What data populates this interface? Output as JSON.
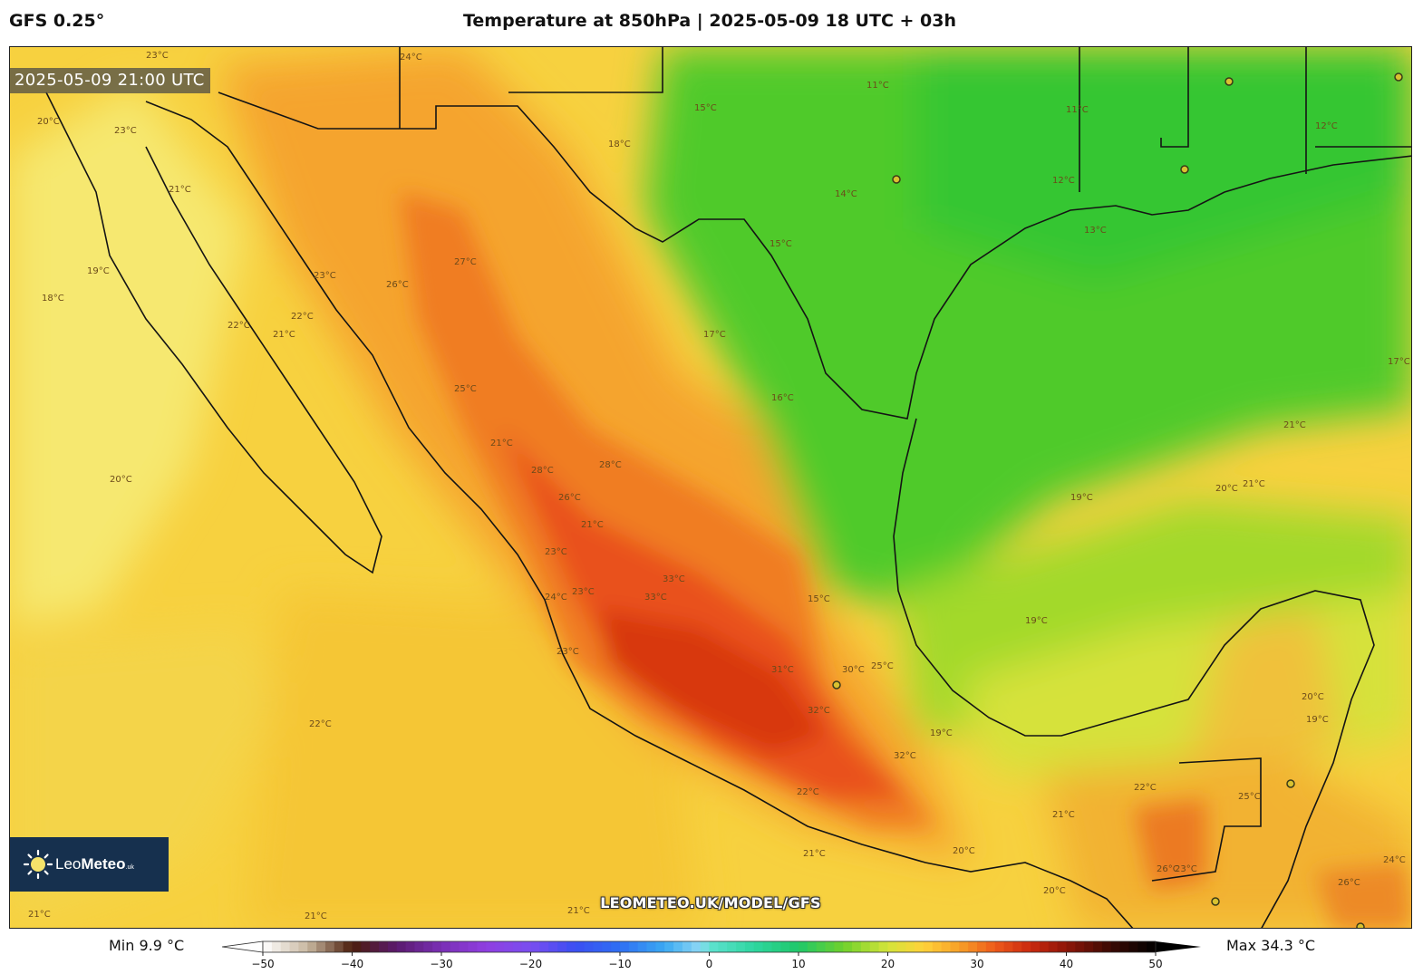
{
  "header": {
    "model": "GFS 0.25°",
    "title": "Temperature at 850hPa | 2025-05-09 18 UTC + 03h"
  },
  "map": {
    "valid_time": "2025-05-09 21:00 UTC",
    "watermark_url": "LEOMETEO.UK/MODEL/GFS",
    "contour_labels": [
      "23°C",
      "24°C",
      "20°C",
      "23°C",
      "21°C",
      "19°C",
      "18°C",
      "23°C",
      "22°C",
      "21°C",
      "22°C",
      "20°C",
      "26°C",
      "27°C",
      "25°C",
      "21°C",
      "28°C",
      "28°C",
      "26°C",
      "21°C",
      "23°C",
      "24°C",
      "23°C",
      "23°C",
      "33°C",
      "33°C",
      "31°C",
      "32°C",
      "30°C",
      "32°C",
      "25°C",
      "22°C",
      "22°C",
      "21°C",
      "21°C",
      "21°C",
      "20°C",
      "21°C",
      "15°C",
      "18°C",
      "17°C",
      "15°C",
      "16°C",
      "15°C",
      "11°C",
      "14°C",
      "12°C",
      "13°C",
      "11°C",
      "12°C",
      "17°C",
      "21°C",
      "20°C",
      "21°C",
      "19°C",
      "19°C",
      "20°C",
      "19°C",
      "19°C",
      "25°C",
      "26°C",
      "26°C",
      "24°C",
      "23°C",
      "20°C",
      "22°C",
      "21°C"
    ]
  },
  "logo": {
    "text_main": "Leo",
    "text_bold": "Meteo",
    "text_small": ".uk"
  },
  "colorbar": {
    "min_label": "Min 9.9 °C",
    "max_label": "Max 34.3 °C",
    "ticks": [
      "-50",
      "-40",
      "-30",
      "-20",
      "-10",
      "0",
      "10",
      "20",
      "30",
      "40",
      "50"
    ],
    "tick_values": [
      -50,
      -40,
      -30,
      -20,
      -10,
      0,
      10,
      20,
      30,
      40,
      50
    ],
    "stops": [
      {
        "v": -50,
        "c": "#ffffff"
      },
      {
        "v": -45,
        "c": "#c9b8a0"
      },
      {
        "v": -40,
        "c": "#4b1e0c"
      },
      {
        "v": -35,
        "c": "#5a1a6e"
      },
      {
        "v": -30,
        "c": "#7a2fb5"
      },
      {
        "v": -25,
        "c": "#8f3ee0"
      },
      {
        "v": -20,
        "c": "#7a4df0"
      },
      {
        "v": -15,
        "c": "#3a4ff2"
      },
      {
        "v": -10,
        "c": "#2f6ff3"
      },
      {
        "v": -5,
        "c": "#3aa9f2"
      },
      {
        "v": -1,
        "c": "#8fd8f5"
      },
      {
        "v": 0,
        "c": "#5fe2d0"
      },
      {
        "v": 5,
        "c": "#2ed6a0"
      },
      {
        "v": 10,
        "c": "#1fc86a"
      },
      {
        "v": 15,
        "c": "#6fd12c"
      },
      {
        "v": 20,
        "c": "#d4e43a"
      },
      {
        "v": 24,
        "c": "#ffd23a"
      },
      {
        "v": 28,
        "c": "#f7a028"
      },
      {
        "v": 32,
        "c": "#ee5a1a"
      },
      {
        "v": 36,
        "c": "#c9290f"
      },
      {
        "v": 40,
        "c": "#8d1608"
      },
      {
        "v": 45,
        "c": "#3a0a04"
      },
      {
        "v": 50,
        "c": "#000000"
      }
    ]
  }
}
